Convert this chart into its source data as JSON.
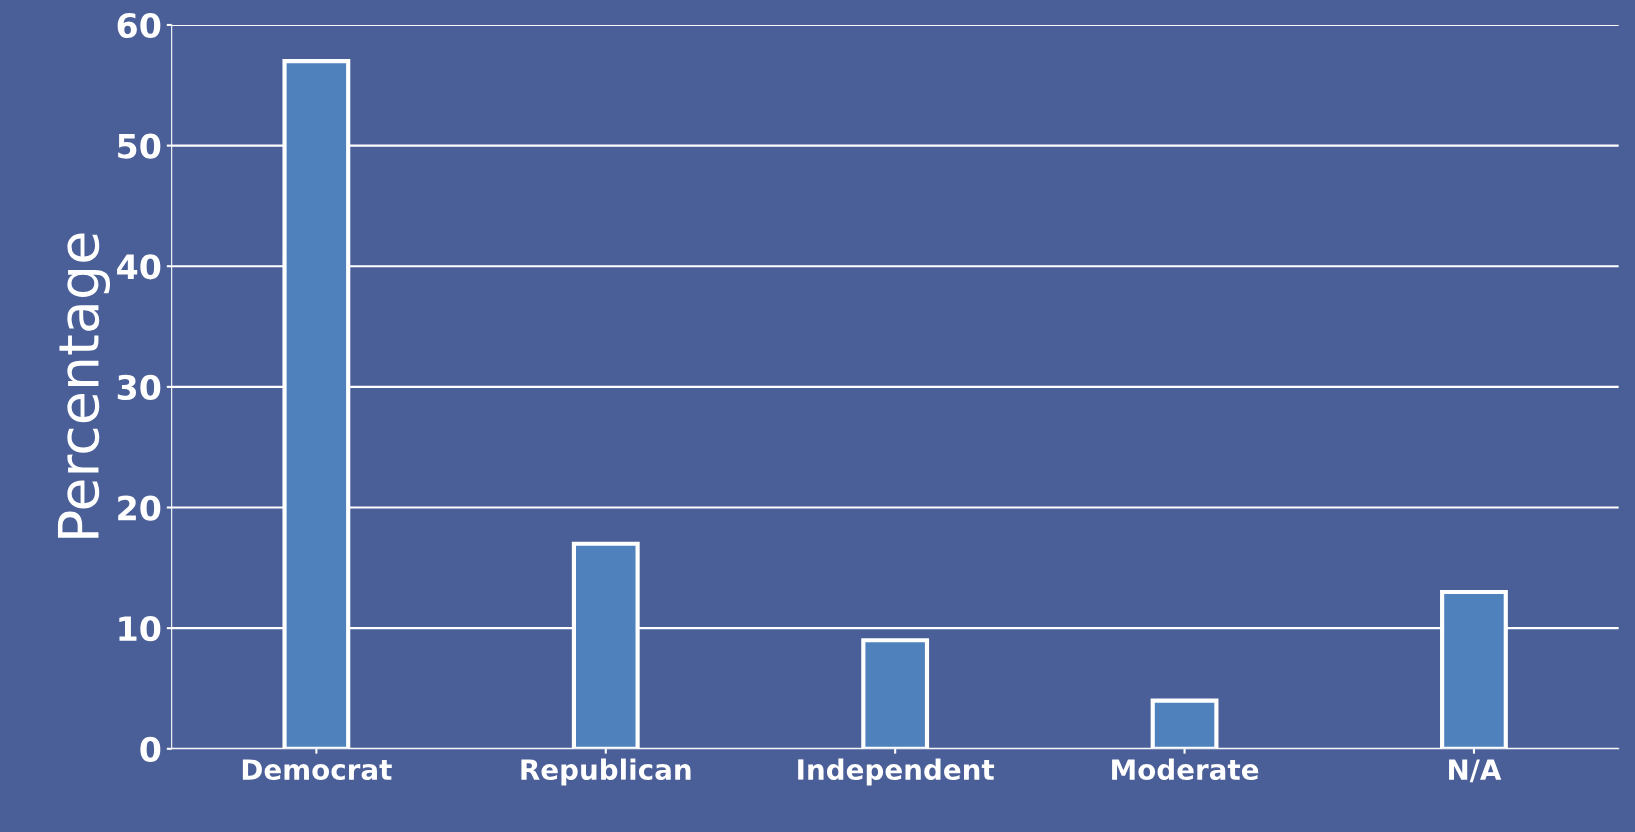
{
  "chart_data": {
    "type": "bar",
    "ylabel": "Percentage",
    "categories": [
      "Democrat",
      "Republican",
      "Independent",
      "Moderate",
      "N/A"
    ],
    "values": [
      57,
      17,
      9,
      4,
      13
    ],
    "color": "#4f81bd",
    "ylim": [
      0,
      60
    ],
    "yticks": [
      0,
      10,
      20,
      30,
      40,
      50,
      60
    ],
    "grid": "y"
  }
}
